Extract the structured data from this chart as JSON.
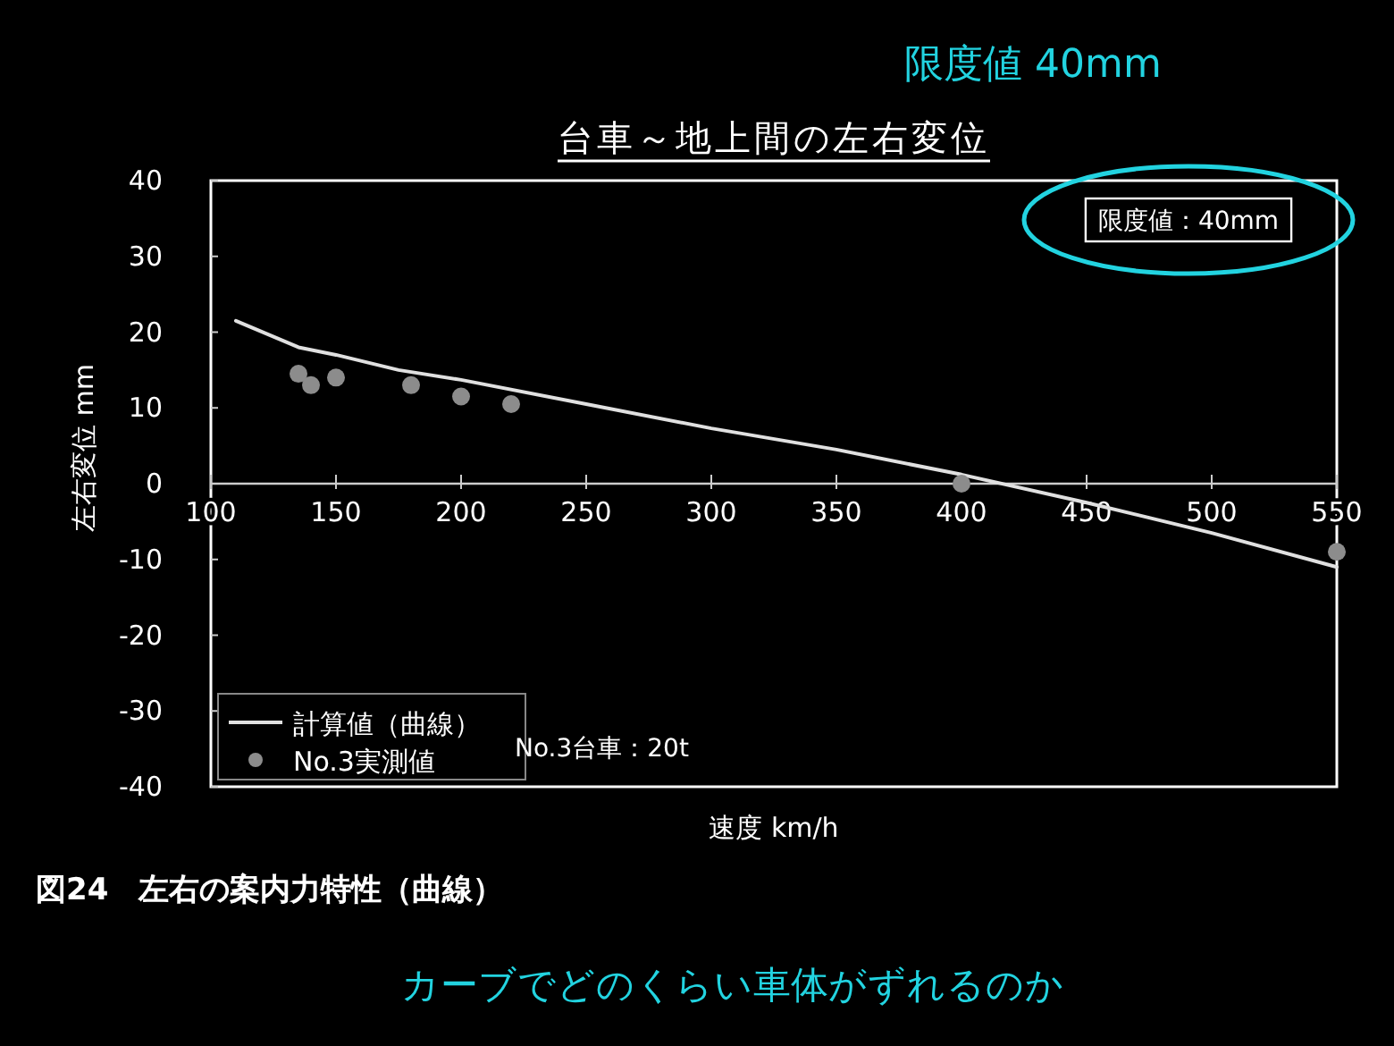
{
  "chart_data": {
    "type": "scatter",
    "title": "台車～地上間の左右変位",
    "xlabel": "速度 km/h",
    "ylabel": "左右変位 mm",
    "xlim": [
      100,
      550
    ],
    "ylim": [
      -40,
      40
    ],
    "xticks": [
      100,
      150,
      200,
      250,
      300,
      350,
      400,
      450,
      500,
      550
    ],
    "yticks": [
      -40,
      -30,
      -20,
      -10,
      0,
      10,
      20,
      30,
      40
    ],
    "grid": false,
    "legend": "bottom left",
    "series": [
      {
        "name": "計算値（曲線）",
        "type": "line",
        "color": "#e0e0e0",
        "marker": "none",
        "line_style": "solid",
        "x": [
          110,
          135,
          150,
          175,
          200,
          250,
          300,
          350,
          400,
          450,
          500,
          550
        ],
        "values": [
          21.5,
          18,
          17,
          15,
          13.7,
          10.5,
          7.3,
          4.5,
          1.2,
          -2.5,
          -6.5,
          -11
        ]
      },
      {
        "name": "No.3実測値",
        "color": "#8c8c8c",
        "marker": "circle",
        "x": [
          135,
          140,
          150,
          180,
          200,
          220,
          400,
          550
        ],
        "values": [
          14.5,
          13,
          14,
          13,
          11.5,
          10.5,
          0,
          -9
        ]
      }
    ],
    "annotations": [
      "限度値：40mm",
      "No.3台車：20t",
      "図24　左右の案内力特性（曲線）",
      "限度値 40mm",
      "カーブでどのくらい車体がずれるのか"
    ]
  }
}
